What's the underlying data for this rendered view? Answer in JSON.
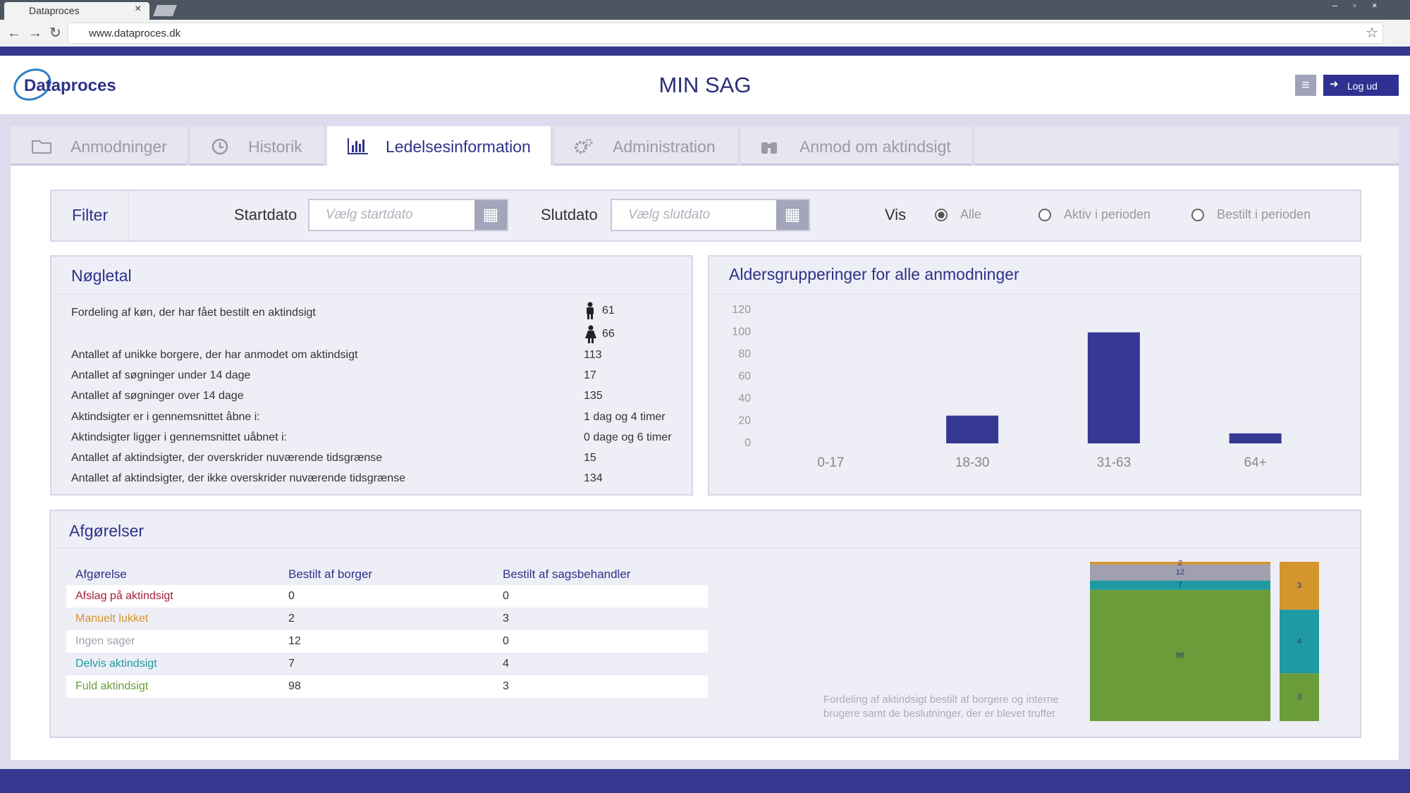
{
  "browser": {
    "tab_title": "Dataproces",
    "url": "www.dataproces.dk"
  },
  "header": {
    "logo": "Dataproces",
    "title": "MIN SAG",
    "logout": "Log ud"
  },
  "tabs": [
    "Anmodninger",
    "Historik",
    "Ledelsesinformation",
    "Administration",
    "Anmod om aktindsigt"
  ],
  "filter": {
    "title": "Filter",
    "start_label": "Startdato",
    "start_placeholder": "Vælg startdato",
    "end_label": "Slutdato",
    "end_placeholder": "Vælg slutdato",
    "vis_label": "Vis",
    "options": [
      "Alle",
      "Aktiv i perioden",
      "Bestilt i perioden"
    ]
  },
  "noegletal": {
    "title": "Nøgletal",
    "gender_label": "Fordeling af køn, der har fået bestilt en aktindsigt",
    "male": 61,
    "female": 66,
    "rows": [
      [
        "Antallet af unikke borgere, der har anmodet om aktindsigt",
        113
      ],
      [
        "Antallet af søgninger under 14 dage",
        17
      ],
      [
        "Antallet af søgninger over 14 dage",
        135
      ],
      [
        "Aktindsigter er i gennemsnittet åbne i:",
        "1 dag og 4 timer"
      ],
      [
        "Aktindsigter ligger i gennemsnittet uåbnet i:",
        "0 dage og 6 timer"
      ],
      [
        "Antallet af aktindsigter, der overskrider nuværende tidsgrænse",
        15
      ],
      [
        "Antallet af aktindsigter, der ikke overskrider nuværende tidsgrænse",
        134
      ]
    ]
  },
  "age_chart": {
    "type": "bar",
    "title": "Aldersgrupperinger for alle anmodninger",
    "categories": [
      "0-17",
      "18-30",
      "31-63",
      "64+"
    ],
    "values": [
      0,
      25,
      100,
      9
    ],
    "color": "#343893",
    "ylim": [
      0,
      120
    ],
    "yticks": [
      0,
      20,
      40,
      60,
      80,
      100,
      120
    ]
  },
  "afgoerelser": {
    "title": "Afgørelser",
    "columns": [
      "Afgørelse",
      "Bestilt af borger",
      "Bestilt af sagsbehandler"
    ],
    "rows": [
      [
        "Afslag på aktindsigt",
        0,
        0
      ],
      [
        "Manuelt lukket",
        2,
        3
      ],
      [
        "Ingen sager",
        12,
        0
      ],
      [
        "Delvis aktindsigt",
        7,
        4
      ],
      [
        "Fuld aktindsigt",
        98,
        3
      ]
    ],
    "row_colors": [
      "#a3203c",
      "#d4952c",
      "#a0a0ae",
      "#1f9aa2",
      "#6a9c3a"
    ],
    "caption": "Fordeling af aktindsigt bestilt af borgere og interne brugere samt de beslutninger, der er blevet truffet"
  }
}
